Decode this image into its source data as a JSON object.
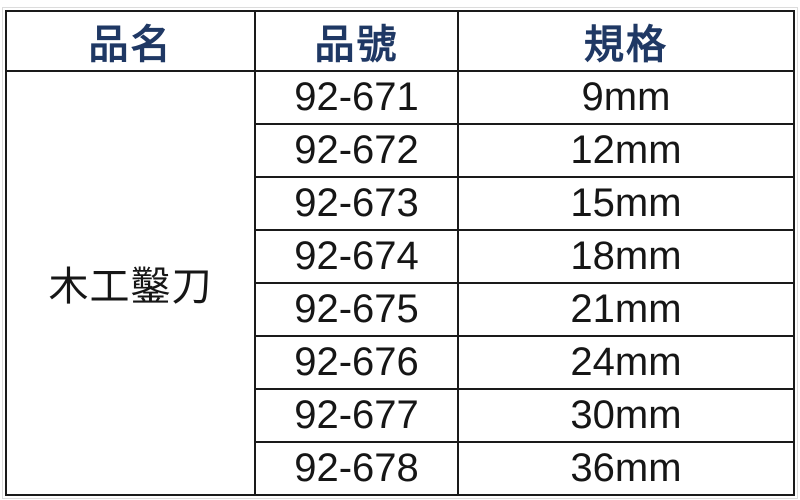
{
  "table": {
    "headers": [
      {
        "label": "品名"
      },
      {
        "label": "品號"
      },
      {
        "label": "規格"
      }
    ],
    "product_name": "木工鑿刀",
    "rows": [
      {
        "item_no": "92-671",
        "spec": "9mm"
      },
      {
        "item_no": "92-672",
        "spec": "12mm"
      },
      {
        "item_no": "92-673",
        "spec": "15mm"
      },
      {
        "item_no": "92-674",
        "spec": "18mm"
      },
      {
        "item_no": "92-675",
        "spec": "21mm"
      },
      {
        "item_no": "92-676",
        "spec": "24mm"
      },
      {
        "item_no": "92-677",
        "spec": "30mm"
      },
      {
        "item_no": "92-678",
        "spec": "36mm"
      }
    ],
    "colors": {
      "header_text": "#1F3864",
      "body_text": "#161616",
      "border": "#1a1a1a",
      "background": "#ffffff"
    }
  }
}
